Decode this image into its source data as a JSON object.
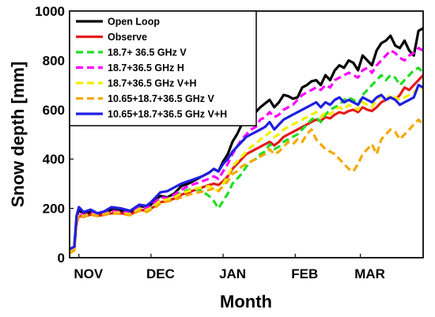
{
  "chart_data": {
    "type": "line",
    "xlabel": "Month",
    "ylabel": "Snow depth [mm]",
    "xlim": [
      0,
      152
    ],
    "ylim": [
      0,
      1000
    ],
    "yticks": [
      0,
      200,
      400,
      600,
      800,
      1000
    ],
    "xticks": [
      {
        "label": "NOV",
        "x": 4
      },
      {
        "label": "DEC",
        "x": 35
      },
      {
        "label": "JAN",
        "x": 66
      },
      {
        "label": "FEB",
        "x": 97
      },
      {
        "label": "MAR",
        "x": 125
      }
    ],
    "legend_placement": "top-left",
    "series": [
      {
        "name": "Open Loop",
        "color": "#000000",
        "dash": "solid",
        "x": [
          0,
          2,
          3,
          4,
          6,
          9,
          12,
          15,
          18,
          22,
          26,
          30,
          33,
          35,
          37,
          39,
          42,
          45,
          48,
          51,
          54,
          57,
          60,
          62,
          64,
          66,
          68,
          70,
          72,
          74,
          76,
          78,
          80,
          82,
          84,
          86,
          88,
          90,
          92,
          94,
          96,
          98,
          100,
          102,
          104,
          106,
          108,
          110,
          112,
          114,
          116,
          118,
          120,
          122,
          124,
          126,
          128,
          130,
          132,
          134,
          136,
          138,
          140,
          142,
          144,
          146,
          148,
          150,
          152
        ],
        "y": [
          30,
          40,
          160,
          195,
          175,
          185,
          175,
          180,
          195,
          190,
          185,
          210,
          205,
          215,
          235,
          250,
          245,
          260,
          290,
          300,
          315,
          330,
          345,
          360,
          350,
          390,
          420,
          470,
          500,
          540,
          560,
          575,
          590,
          610,
          625,
          640,
          610,
          630,
          660,
          655,
          645,
          650,
          690,
          700,
          715,
          720,
          700,
          740,
          720,
          760,
          780,
          770,
          800,
          790,
          760,
          820,
          800,
          780,
          840,
          870,
          880,
          900,
          860,
          850,
          880,
          840,
          820,
          920,
          930
        ]
      },
      {
        "name": "Observe",
        "color": "#e41a1c",
        "dash": "solid",
        "x": [
          0,
          2,
          3,
          4,
          6,
          9,
          12,
          15,
          18,
          22,
          26,
          30,
          33,
          35,
          37,
          39,
          42,
          45,
          48,
          51,
          54,
          57,
          60,
          62,
          64,
          66,
          68,
          70,
          72,
          74,
          76,
          78,
          80,
          82,
          84,
          86,
          88,
          90,
          92,
          94,
          96,
          98,
          100,
          102,
          104,
          106,
          108,
          110,
          112,
          114,
          116,
          118,
          120,
          122,
          124,
          126,
          128,
          130,
          132,
          134,
          136,
          138,
          140,
          142,
          144,
          146,
          148,
          150,
          152
        ],
        "y": [
          20,
          30,
          140,
          170,
          165,
          175,
          170,
          175,
          180,
          180,
          175,
          195,
          190,
          200,
          210,
          225,
          230,
          240,
          255,
          265,
          275,
          285,
          295,
          300,
          295,
          310,
          330,
          360,
          380,
          400,
          420,
          430,
          440,
          450,
          460,
          470,
          455,
          470,
          490,
          500,
          510,
          520,
          530,
          540,
          550,
          560,
          555,
          570,
          565,
          580,
          590,
          585,
          595,
          600,
          590,
          610,
          600,
          595,
          610,
          630,
          640,
          650,
          640,
          660,
          690,
          680,
          700,
          720,
          740
        ]
      },
      {
        "name": "18.7+ 36.5 GHz V",
        "color": "#22dd22",
        "dash": "dashed",
        "x": [
          0,
          2,
          3,
          4,
          6,
          9,
          12,
          15,
          18,
          22,
          26,
          30,
          33,
          35,
          37,
          39,
          42,
          45,
          48,
          51,
          54,
          57,
          60,
          62,
          64,
          66,
          68,
          70,
          72,
          74,
          76,
          78,
          80,
          82,
          84,
          86,
          88,
          90,
          92,
          94,
          96,
          98,
          100,
          102,
          104,
          106,
          108,
          110,
          112,
          114,
          116,
          118,
          120,
          122,
          124,
          126,
          128,
          130,
          132,
          134,
          136,
          138,
          140,
          142,
          144,
          146,
          148,
          150,
          152
        ],
        "y": [
          25,
          35,
          150,
          180,
          170,
          180,
          172,
          178,
          185,
          183,
          178,
          200,
          195,
          205,
          220,
          235,
          238,
          250,
          265,
          275,
          280,
          270,
          250,
          230,
          200,
          230,
          260,
          300,
          320,
          340,
          370,
          390,
          400,
          420,
          430,
          460,
          440,
          450,
          470,
          480,
          490,
          500,
          520,
          540,
          560,
          570,
          550,
          580,
          600,
          610,
          620,
          640,
          650,
          640,
          620,
          660,
          680,
          700,
          720,
          740,
          720,
          740,
          730,
          700,
          720,
          740,
          760,
          770,
          750
        ]
      },
      {
        "name": "18.7+36.5 GHz H",
        "color": "#ff00ff",
        "dash": "dashed",
        "x": [
          0,
          2,
          3,
          4,
          6,
          9,
          12,
          15,
          18,
          22,
          26,
          30,
          33,
          35,
          37,
          39,
          42,
          45,
          48,
          51,
          54,
          57,
          60,
          62,
          64,
          66,
          68,
          70,
          72,
          74,
          76,
          78,
          80,
          82,
          84,
          86,
          88,
          90,
          92,
          94,
          96,
          98,
          100,
          102,
          104,
          106,
          108,
          110,
          112,
          114,
          116,
          118,
          120,
          122,
          124,
          126,
          128,
          130,
          132,
          134,
          136,
          138,
          140,
          142,
          144,
          146,
          148,
          150,
          152
        ],
        "y": [
          28,
          38,
          155,
          185,
          172,
          182,
          174,
          180,
          190,
          186,
          182,
          205,
          200,
          210,
          228,
          245,
          242,
          255,
          275,
          290,
          300,
          310,
          320,
          330,
          320,
          350,
          380,
          420,
          450,
          480,
          500,
          520,
          530,
          560,
          570,
          590,
          570,
          580,
          600,
          610,
          620,
          640,
          660,
          670,
          680,
          690,
          680,
          700,
          690,
          720,
          730,
          740,
          750,
          740,
          730,
          760,
          770,
          750,
          780,
          800,
          820,
          840,
          830,
          810,
          800,
          820,
          830,
          850,
          840
        ]
      },
      {
        "name": "18.7+36.5 GHz V+H",
        "color": "#f0f000",
        "dash": "dashed",
        "x": [
          0,
          2,
          3,
          4,
          6,
          9,
          12,
          15,
          18,
          22,
          26,
          30,
          33,
          35,
          37,
          39,
          42,
          45,
          48,
          51,
          54,
          57,
          60,
          62,
          64,
          66,
          68,
          70,
          72,
          74,
          76,
          78,
          80,
          82,
          84,
          86,
          88,
          90,
          92,
          94,
          96,
          98,
          100,
          102,
          104,
          106,
          108,
          110,
          112,
          114,
          116,
          118,
          120,
          122,
          124,
          126,
          128,
          130,
          132,
          134,
          136,
          138,
          140,
          142,
          144,
          146,
          148,
          150,
          152
        ],
        "y": [
          22,
          33,
          148,
          178,
          168,
          178,
          170,
          176,
          183,
          182,
          176,
          198,
          192,
          202,
          216,
          232,
          236,
          245,
          260,
          270,
          280,
          285,
          290,
          280,
          270,
          300,
          330,
          370,
          390,
          410,
          430,
          450,
          460,
          480,
          490,
          510,
          490,
          500,
          520,
          530,
          540,
          550,
          560,
          570,
          580,
          590,
          570,
          590,
          580,
          600,
          610,
          600,
          620,
          610,
          600,
          630,
          620,
          610,
          640,
          660,
          640,
          660,
          650,
          640,
          650,
          660,
          670,
          690,
          680
        ]
      },
      {
        "name": "10.65+18.7+36.5 GHz V",
        "color": "#f5a800",
        "dash": "dashed",
        "x": [
          0,
          2,
          3,
          4,
          6,
          9,
          12,
          15,
          18,
          22,
          26,
          30,
          33,
          35,
          37,
          39,
          42,
          45,
          48,
          51,
          54,
          57,
          60,
          62,
          64,
          66,
          68,
          70,
          72,
          74,
          76,
          78,
          80,
          82,
          84,
          86,
          88,
          90,
          92,
          94,
          96,
          98,
          100,
          102,
          104,
          106,
          108,
          110,
          112,
          114,
          116,
          118,
          120,
          122,
          124,
          126,
          128,
          130,
          132,
          134,
          136,
          138,
          140,
          142,
          144,
          146,
          148,
          150,
          152
        ],
        "y": [
          18,
          30,
          145,
          175,
          165,
          175,
          168,
          173,
          180,
          178,
          172,
          190,
          185,
          195,
          205,
          220,
          228,
          235,
          245,
          255,
          262,
          268,
          275,
          280,
          270,
          290,
          310,
          340,
          350,
          370,
          380,
          390,
          400,
          410,
          420,
          440,
          420,
          430,
          450,
          470,
          460,
          480,
          470,
          500,
          520,
          480,
          460,
          440,
          430,
          420,
          400,
          380,
          360,
          350,
          380,
          420,
          440,
          460,
          420,
          480,
          500,
          520,
          510,
          480,
          500,
          520,
          540,
          560,
          540
        ]
      },
      {
        "name": "10.65+18.7+36.5 GHz V+H",
        "color": "#1f1fe0",
        "dash": "solid",
        "x": [
          0,
          2,
          3,
          4,
          6,
          9,
          12,
          15,
          18,
          22,
          26,
          30,
          33,
          35,
          37,
          39,
          42,
          45,
          48,
          51,
          54,
          57,
          60,
          62,
          64,
          66,
          68,
          70,
          72,
          74,
          76,
          78,
          80,
          82,
          84,
          86,
          88,
          90,
          92,
          94,
          96,
          98,
          100,
          102,
          104,
          106,
          108,
          110,
          112,
          114,
          116,
          118,
          120,
          122,
          124,
          126,
          128,
          130,
          132,
          134,
          136,
          138,
          140,
          142,
          144,
          146,
          148,
          150,
          152
        ],
        "y": [
          35,
          45,
          170,
          205,
          185,
          195,
          180,
          188,
          205,
          200,
          190,
          215,
          210,
          225,
          245,
          265,
          270,
          285,
          300,
          310,
          320,
          330,
          345,
          360,
          350,
          380,
          400,
          430,
          450,
          470,
          490,
          500,
          510,
          520,
          530,
          550,
          520,
          540,
          560,
          570,
          580,
          590,
          600,
          610,
          620,
          630,
          610,
          630,
          620,
          640,
          650,
          630,
          640,
          630,
          620,
          650,
          640,
          630,
          650,
          660,
          640,
          650,
          640,
          620,
          630,
          640,
          650,
          700,
          690
        ]
      }
    ]
  }
}
